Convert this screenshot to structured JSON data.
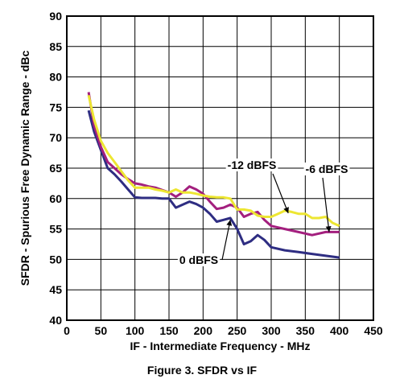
{
  "caption": "Figure 3. SFDR vs IF",
  "chart_data": {
    "type": "line",
    "xlabel": "IF - Intermediate Frequency - MHz",
    "ylabel": "SFDR - Spurious Free Dynamic Range - dBc",
    "xlim": [
      0,
      450
    ],
    "ylim": [
      40,
      90
    ],
    "xticks": [
      "0",
      "50",
      "100",
      "150",
      "200",
      "250",
      "300",
      "350",
      "400",
      "450"
    ],
    "yticks": [
      "40",
      "45",
      "50",
      "55",
      "60",
      "65",
      "70",
      "75",
      "80",
      "85",
      "90"
    ],
    "grid": true,
    "series": [
      {
        "name": "0 dBFS",
        "color": "#2e2d82",
        "x": [
          32,
          40,
          50,
          60,
          70,
          80,
          90,
          100,
          110,
          120,
          130,
          140,
          150,
          160,
          170,
          180,
          190,
          200,
          210,
          220,
          230,
          240,
          250,
          260,
          270,
          280,
          290,
          300,
          320,
          340,
          360,
          380,
          400
        ],
        "y": [
          74.5,
          71,
          68,
          65,
          64,
          62.8,
          61.5,
          60.2,
          60.1,
          60.1,
          60.1,
          60,
          60,
          58.5,
          59,
          59.5,
          59.1,
          58.5,
          57.5,
          56.2,
          56.5,
          56.8,
          55,
          52.5,
          53,
          54,
          53.2,
          52,
          51.5,
          51.2,
          50.9,
          50.6,
          50.3
        ]
      },
      {
        "name": "-6 dBFS",
        "color": "#a31f7e",
        "x": [
          32,
          40,
          50,
          60,
          70,
          80,
          90,
          100,
          110,
          120,
          130,
          140,
          150,
          160,
          170,
          180,
          190,
          200,
          210,
          220,
          230,
          240,
          250,
          260,
          270,
          280,
          290,
          300,
          320,
          340,
          360,
          380,
          400
        ],
        "y": [
          77.5,
          72,
          68.5,
          66,
          65,
          64,
          63.2,
          62.5,
          62.3,
          62,
          61.8,
          61.4,
          61,
          60.3,
          61,
          62,
          61.5,
          60.8,
          59.5,
          58.3,
          58.5,
          59,
          58.5,
          57,
          57.5,
          57.8,
          56.5,
          55.5,
          55,
          54.5,
          54,
          54.5,
          54.5
        ]
      },
      {
        "name": "-12 dBFS",
        "color": "#ede632",
        "x": [
          32,
          40,
          50,
          60,
          70,
          80,
          90,
          100,
          110,
          120,
          130,
          140,
          150,
          160,
          170,
          180,
          190,
          200,
          210,
          220,
          230,
          240,
          250,
          260,
          270,
          280,
          290,
          300,
          310,
          320,
          330,
          340,
          350,
          360,
          370,
          380,
          390,
          400
        ],
        "y": [
          77,
          73,
          69.5,
          67.5,
          66,
          64.5,
          63,
          61.8,
          61.8,
          61.8,
          61.5,
          61.3,
          61,
          61.5,
          61,
          61,
          60.8,
          60.5,
          60.3,
          60.2,
          60.2,
          60,
          58.2,
          58.2,
          58,
          57.2,
          57,
          57,
          57.5,
          58,
          57.8,
          57.5,
          57.5,
          56.8,
          56.8,
          57,
          56,
          55.5
        ]
      }
    ],
    "annotations": [
      {
        "text": "-12 dBFS",
        "series": "-12 dBFS",
        "point": [
          325,
          57.6
        ]
      },
      {
        "text": "-6 dBFS",
        "series": "-6 dBFS",
        "point": [
          385,
          54.5
        ]
      },
      {
        "text": "0 dBFS",
        "series": "0 dBFS",
        "point": [
          240,
          56.5
        ]
      }
    ]
  }
}
